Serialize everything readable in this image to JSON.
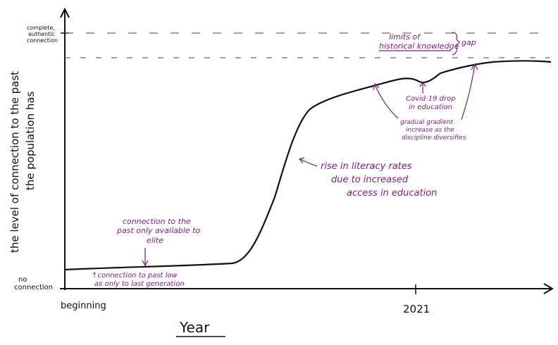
{
  "axes": {
    "y_label": [
      "the level of connection to the past",
      "the population has"
    ],
    "y_top": [
      "complete,",
      "authentic",
      "connection"
    ],
    "y_bottom": [
      "no",
      "connection"
    ],
    "x_start": "beginning",
    "x_mark": "2021",
    "x_title": "Year"
  },
  "annotations": {
    "limits": [
      "limits of",
      "historical knowledge"
    ],
    "gap": "gap",
    "covid": [
      "Covid-19 drop",
      "in education"
    ],
    "gradual": [
      "gradual gradient",
      "increase as the",
      "discipline diversifies"
    ],
    "literacy": [
      "rise in literacy rates",
      "due to increased",
      "access in education"
    ],
    "elite": [
      "connection to the",
      "past only available to",
      "elite"
    ],
    "low": [
      "↑connection to past low",
      "as only to last generation"
    ]
  }
}
